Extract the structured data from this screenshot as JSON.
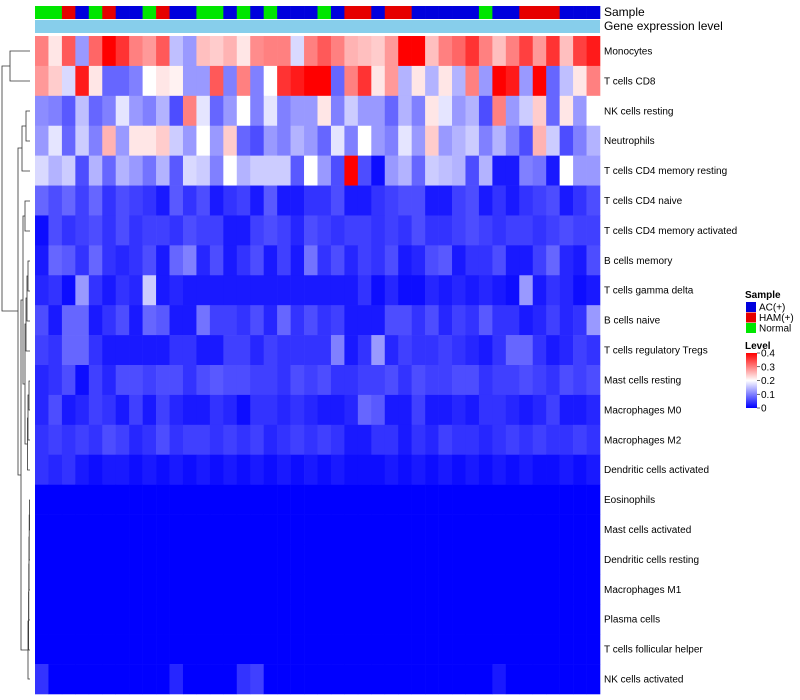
{
  "chart_data": {
    "type": "heatmap",
    "annotation_tracks": [
      "Sample",
      "Gene expression level"
    ],
    "rows": [
      "Monocytes",
      "T cells CD8",
      "NK cells resting",
      "Neutrophils",
      "T cells CD4 memory resting",
      "T cells CD4 naive",
      "T cells CD4 memory activated",
      "B cells memory",
      "T cells gamma delta",
      "B cells naive",
      "T cells regulatory  Tregs",
      "Mast cells resting",
      "Macrophages M0",
      "Macrophages M2",
      "Dendritic cells activated",
      "Eosinophils",
      "Mast cells activated",
      "Dendritic cells resting",
      "Macrophages M1",
      "Plasma cells",
      "T cells follicular helper",
      "NK cells activated"
    ],
    "sample_groups": [
      "Normal",
      "Normal",
      "HAM(+)",
      "AC(+)",
      "Normal",
      "HAM(+)",
      "AC(+)",
      "AC(+)",
      "Normal",
      "HAM(+)",
      "AC(+)",
      "AC(+)",
      "Normal",
      "Normal",
      "AC(+)",
      "Normal",
      "AC(+)",
      "Normal",
      "AC(+)",
      "AC(+)",
      "AC(+)",
      "Normal",
      "AC(+)",
      "HAM(+)",
      "HAM(+)",
      "AC(+)",
      "HAM(+)",
      "HAM(+)",
      "AC(+)",
      "AC(+)",
      "AC(+)",
      "AC(+)",
      "AC(+)",
      "Normal",
      "AC(+)",
      "AC(+)",
      "HAM(+)",
      "HAM(+)",
      "HAM(+)",
      "AC(+)",
      "AC(+)",
      "AC(+)"
    ],
    "values": [
      [
        0.3,
        0.22,
        0.33,
        0.12,
        0.32,
        0.4,
        0.36,
        0.3,
        0.28,
        0.33,
        0.15,
        0.12,
        0.25,
        0.24,
        0.26,
        0.22,
        0.29,
        0.3,
        0.3,
        0.17,
        0.3,
        0.33,
        0.3,
        0.26,
        0.25,
        0.24,
        0.28,
        0.4,
        0.4,
        0.25,
        0.3,
        0.32,
        0.36,
        0.3,
        0.25,
        0.3,
        0.35,
        0.28,
        0.36,
        0.25,
        0.35,
        0.38
      ],
      [
        0.28,
        0.24,
        0.17,
        0.38,
        0.22,
        0.08,
        0.08,
        0.1,
        0.2,
        0.22,
        0.21,
        0.12,
        0.12,
        0.33,
        0.1,
        0.3,
        0.1,
        0.2,
        0.36,
        0.38,
        0.4,
        0.4,
        0.08,
        0.3,
        0.36,
        0.22,
        0.28,
        0.14,
        0.22,
        0.14,
        0.22,
        0.14,
        0.3,
        0.12,
        0.4,
        0.38,
        0.12,
        0.4,
        0.08,
        0.15,
        0.22,
        0.3
      ],
      [
        0.11,
        0.1,
        0.07,
        0.15,
        0.08,
        0.1,
        0.18,
        0.12,
        0.1,
        0.14,
        0.06,
        0.3,
        0.18,
        0.08,
        0.12,
        0.2,
        0.1,
        0.18,
        0.1,
        0.12,
        0.12,
        0.22,
        0.1,
        0.16,
        0.12,
        0.12,
        0.08,
        0.14,
        0.1,
        0.22,
        0.18,
        0.12,
        0.14,
        0.06,
        0.3,
        0.12,
        0.16,
        0.24,
        0.08,
        0.22,
        0.12,
        0.2
      ],
      [
        0.12,
        0.18,
        0.08,
        0.16,
        0.1,
        0.26,
        0.12,
        0.22,
        0.22,
        0.24,
        0.16,
        0.12,
        0.2,
        0.12,
        0.24,
        0.08,
        0.06,
        0.12,
        0.1,
        0.14,
        0.12,
        0.08,
        0.18,
        0.1,
        0.2,
        0.12,
        0.1,
        0.18,
        0.12,
        0.24,
        0.12,
        0.14,
        0.16,
        0.1,
        0.14,
        0.1,
        0.06,
        0.26,
        0.16,
        0.06,
        0.1,
        0.14
      ],
      [
        0.17,
        0.14,
        0.16,
        0.06,
        0.14,
        0.08,
        0.14,
        0.12,
        0.09,
        0.14,
        0.07,
        0.17,
        0.16,
        0.1,
        0.2,
        0.14,
        0.16,
        0.16,
        0.16,
        0.07,
        0.2,
        0.12,
        0.06,
        0.4,
        0.06,
        0.01,
        0.12,
        0.14,
        0.08,
        0.16,
        0.15,
        0.14,
        0.06,
        0.14,
        0.02,
        0.02,
        0.1,
        0.09,
        0.02,
        0.2,
        0.12,
        0.12
      ],
      [
        0.08,
        0.06,
        0.08,
        0.05,
        0.08,
        0.04,
        0.06,
        0.05,
        0.04,
        0.02,
        0.07,
        0.04,
        0.06,
        0.02,
        0.04,
        0.05,
        0.02,
        0.07,
        0.02,
        0.02,
        0.04,
        0.04,
        0.06,
        0.02,
        0.02,
        0.04,
        0.05,
        0.06,
        0.06,
        0.02,
        0.02,
        0.05,
        0.06,
        0.02,
        0.04,
        0.02,
        0.04,
        0.05,
        0.06,
        0.02,
        0.04,
        0.06
      ],
      [
        0.01,
        0.06,
        0.04,
        0.05,
        0.06,
        0.04,
        0.06,
        0.04,
        0.05,
        0.05,
        0.04,
        0.06,
        0.05,
        0.05,
        0.02,
        0.02,
        0.05,
        0.06,
        0.05,
        0.03,
        0.06,
        0.05,
        0.04,
        0.05,
        0.05,
        0.04,
        0.05,
        0.04,
        0.06,
        0.04,
        0.04,
        0.05,
        0.06,
        0.05,
        0.04,
        0.05,
        0.05,
        0.04,
        0.05,
        0.06,
        0.05,
        0.05
      ],
      [
        0.02,
        0.08,
        0.07,
        0.04,
        0.08,
        0.04,
        0.03,
        0.04,
        0.06,
        0.02,
        0.08,
        0.1,
        0.03,
        0.06,
        0.02,
        0.04,
        0.06,
        0.02,
        0.05,
        0.02,
        0.09,
        0.04,
        0.06,
        0.03,
        0.05,
        0.04,
        0.06,
        0.02,
        0.03,
        0.06,
        0.07,
        0.02,
        0.04,
        0.04,
        0.06,
        0.02,
        0.02,
        0.05,
        0.08,
        0.03,
        0.02,
        0.06
      ],
      [
        0.03,
        0.04,
        0.01,
        0.12,
        0.04,
        0.02,
        0.04,
        0.03,
        0.16,
        0.02,
        0.03,
        0.02,
        0.02,
        0.02,
        0.02,
        0.02,
        0.02,
        0.02,
        0.02,
        0.02,
        0.02,
        0.02,
        0.02,
        0.02,
        0.04,
        0.01,
        0.03,
        0.01,
        0.01,
        0.03,
        0.02,
        0.03,
        0.02,
        0.03,
        0.02,
        0.01,
        0.12,
        0.02,
        0.04,
        0.03,
        0.01,
        0.02
      ],
      [
        0.06,
        0.02,
        0.08,
        0.08,
        0.02,
        0.04,
        0.06,
        0.02,
        0.08,
        0.07,
        0.02,
        0.02,
        0.09,
        0.05,
        0.05,
        0.04,
        0.06,
        0.03,
        0.08,
        0.04,
        0.06,
        0.04,
        0.05,
        0.02,
        0.02,
        0.02,
        0.06,
        0.06,
        0.04,
        0.06,
        0.03,
        0.05,
        0.04,
        0.07,
        0.04,
        0.04,
        0.02,
        0.03,
        0.05,
        0.03,
        0.04,
        0.12
      ],
      [
        0.05,
        0.04,
        0.08,
        0.08,
        0.04,
        0.02,
        0.02,
        0.02,
        0.02,
        0.02,
        0.04,
        0.04,
        0.02,
        0.02,
        0.05,
        0.05,
        0.03,
        0.05,
        0.04,
        0.04,
        0.04,
        0.04,
        0.1,
        0.02,
        0.04,
        0.12,
        0.03,
        0.05,
        0.04,
        0.04,
        0.05,
        0.04,
        0.03,
        0.02,
        0.04,
        0.08,
        0.08,
        0.04,
        0.02,
        0.03,
        0.05,
        0.04
      ],
      [
        0.03,
        0.04,
        0.06,
        0.01,
        0.05,
        0.03,
        0.06,
        0.06,
        0.05,
        0.06,
        0.06,
        0.04,
        0.06,
        0.07,
        0.06,
        0.06,
        0.05,
        0.05,
        0.04,
        0.06,
        0.05,
        0.06,
        0.04,
        0.04,
        0.05,
        0.05,
        0.06,
        0.04,
        0.06,
        0.05,
        0.05,
        0.06,
        0.06,
        0.04,
        0.05,
        0.05,
        0.06,
        0.05,
        0.04,
        0.06,
        0.05,
        0.06
      ],
      [
        0.03,
        0.06,
        0.02,
        0.03,
        0.05,
        0.04,
        0.02,
        0.05,
        0.02,
        0.05,
        0.03,
        0.02,
        0.02,
        0.04,
        0.03,
        0.01,
        0.04,
        0.04,
        0.03,
        0.04,
        0.03,
        0.02,
        0.02,
        0.03,
        0.08,
        0.07,
        0.02,
        0.02,
        0.05,
        0.02,
        0.02,
        0.03,
        0.02,
        0.04,
        0.04,
        0.03,
        0.02,
        0.03,
        0.05,
        0.02,
        0.02,
        0.03
      ],
      [
        0.04,
        0.05,
        0.04,
        0.05,
        0.04,
        0.06,
        0.05,
        0.03,
        0.04,
        0.06,
        0.04,
        0.05,
        0.05,
        0.04,
        0.05,
        0.04,
        0.05,
        0.03,
        0.04,
        0.05,
        0.04,
        0.05,
        0.04,
        0.02,
        0.02,
        0.04,
        0.04,
        0.02,
        0.04,
        0.03,
        0.05,
        0.04,
        0.04,
        0.03,
        0.04,
        0.05,
        0.04,
        0.05,
        0.04,
        0.04,
        0.05,
        0.04
      ],
      [
        0.04,
        0.03,
        0.04,
        0.02,
        0.01,
        0.02,
        0.02,
        0.01,
        0.02,
        0.01,
        0.02,
        0.01,
        0.02,
        0.01,
        0.02,
        0.01,
        0.02,
        0.01,
        0.02,
        0.01,
        0.02,
        0.01,
        0.02,
        0.01,
        0.01,
        0.01,
        0.02,
        0.01,
        0.02,
        0.01,
        0.02,
        0.01,
        0.02,
        0.01,
        0.02,
        0.01,
        0.02,
        0.01,
        0.01,
        0.02,
        0.01,
        0.02
      ],
      [
        0,
        0,
        0,
        0,
        0,
        0,
        0,
        0,
        0,
        0,
        0,
        0,
        0,
        0,
        0,
        0,
        0,
        0,
        0,
        0,
        0,
        0,
        0,
        0,
        0,
        0,
        0,
        0,
        0,
        0,
        0,
        0,
        0,
        0,
        0,
        0,
        0,
        0,
        0,
        0,
        0,
        0
      ],
      [
        0,
        0,
        0,
        0,
        0,
        0,
        0,
        0,
        0,
        0,
        0,
        0,
        0,
        0,
        0,
        0,
        0,
        0,
        0,
        0,
        0,
        0,
        0,
        0,
        0,
        0,
        0,
        0,
        0,
        0,
        0,
        0,
        0,
        0,
        0,
        0,
        0,
        0,
        0,
        0,
        0,
        0
      ],
      [
        0,
        0,
        0,
        0,
        0,
        0,
        0,
        0,
        0,
        0,
        0,
        0,
        0,
        0,
        0,
        0,
        0,
        0,
        0,
        0,
        0,
        0,
        0,
        0,
        0,
        0,
        0,
        0,
        0,
        0,
        0,
        0,
        0,
        0,
        0,
        0,
        0,
        0,
        0,
        0,
        0,
        0
      ],
      [
        0,
        0,
        0,
        0,
        0,
        0,
        0,
        0,
        0,
        0,
        0,
        0,
        0,
        0,
        0,
        0,
        0,
        0,
        0,
        0,
        0,
        0,
        0,
        0,
        0,
        0,
        0,
        0,
        0,
        0,
        0,
        0,
        0,
        0,
        0,
        0,
        0,
        0,
        0,
        0,
        0,
        0
      ],
      [
        0,
        0,
        0,
        0,
        0,
        0,
        0,
        0,
        0,
        0,
        0,
        0,
        0,
        0,
        0,
        0,
        0,
        0,
        0,
        0,
        0,
        0,
        0,
        0,
        0,
        0,
        0,
        0,
        0,
        0,
        0,
        0,
        0,
        0,
        0,
        0,
        0,
        0,
        0,
        0,
        0,
        0
      ],
      [
        0,
        0,
        0,
        0,
        0,
        0,
        0,
        0,
        0,
        0,
        0,
        0,
        0,
        0,
        0,
        0,
        0,
        0,
        0,
        0,
        0,
        0,
        0,
        0,
        0,
        0,
        0,
        0,
        0,
        0,
        0,
        0,
        0,
        0,
        0,
        0,
        0,
        0,
        0,
        0,
        0,
        0
      ],
      [
        0.04,
        0,
        0,
        0,
        0,
        0,
        0,
        0,
        0,
        0,
        0.03,
        0,
        0,
        0,
        0,
        0.04,
        0.05,
        0,
        0,
        0,
        0,
        0,
        0,
        0,
        0,
        0,
        0,
        0,
        0,
        0,
        0,
        0,
        0,
        0,
        0.02,
        0,
        0,
        0,
        0,
        0,
        0,
        0
      ]
    ],
    "legend": {
      "sample_title": "Sample",
      "sample_entries": [
        {
          "label": "AC(+)",
          "color": "#0000dd"
        },
        {
          "label": "HAM(+)",
          "color": "#e60000"
        },
        {
          "label": "Normal",
          "color": "#00e600"
        }
      ],
      "level_title": "Level",
      "level_ticks": [
        "0.4",
        "0.3",
        "0.2",
        "0.1",
        "0"
      ],
      "level_range": [
        0,
        0.4
      ]
    },
    "colors": {
      "low": "#0000ff",
      "mid": "#ffffff",
      "high": "#ff0000",
      "expression_track": "#87ceeb"
    }
  }
}
